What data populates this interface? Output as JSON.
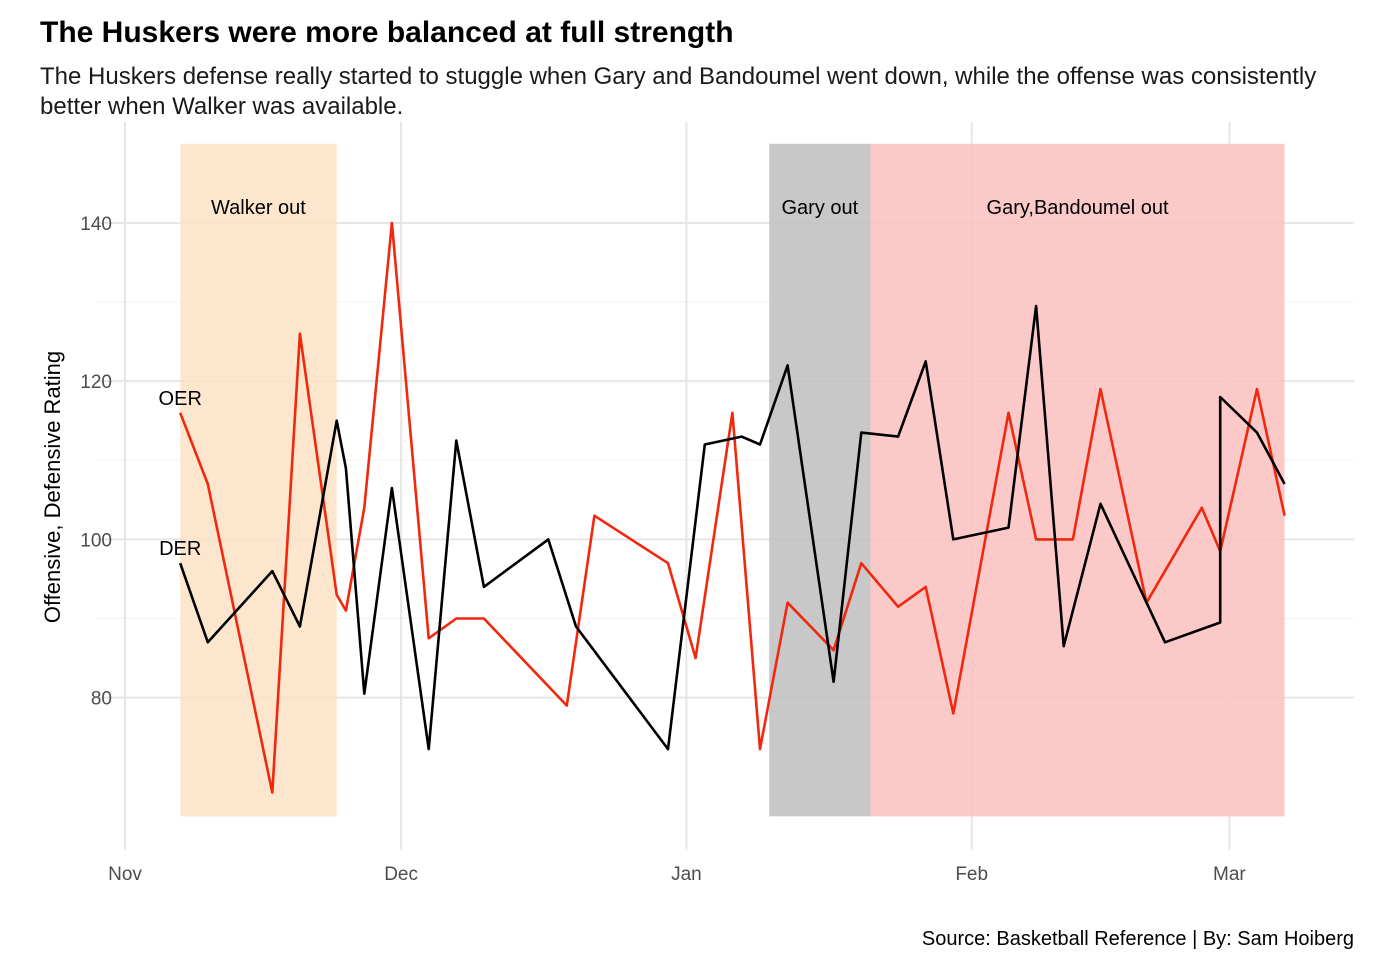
{
  "title": "The Huskers were more balanced at full strength",
  "subtitle": "The Huskers defense really started to stuggle when Gary and Bandoumel went down, while the offense was consistently better when Walker was available.",
  "caption": "Source: Basketball Reference | By: Sam Hoiberg",
  "chart_data": {
    "type": "line",
    "title": "The Huskers were more balanced at full strength",
    "xlabel": "",
    "ylabel": "Offensive, Defensive Rating",
    "x_axis": {
      "type": "date",
      "range": [
        "2021-11-01",
        "2022-03-09"
      ],
      "ticks": [
        {
          "date": "2021-11-01",
          "label": "Nov"
        },
        {
          "date": "2021-12-01",
          "label": "Dec"
        },
        {
          "date": "2022-01-01",
          "label": "Jan"
        },
        {
          "date": "2022-02-01",
          "label": "Feb"
        },
        {
          "date": "2022-03-01",
          "label": "Mar"
        }
      ]
    },
    "y_axis": {
      "range": [
        61,
        152
      ],
      "ticks": [
        80,
        100,
        120,
        140
      ]
    },
    "grid": true,
    "legend": "none",
    "shaded_periods": [
      {
        "label": "Walker out",
        "start": "2021-11-07",
        "end": "2021-11-24",
        "ymin": 65,
        "ymax": 150,
        "color": "#fbe3c5"
      },
      {
        "label": "Gary out",
        "start": "2022-01-10",
        "end": "2022-01-21",
        "ymin": 65,
        "ymax": 150,
        "color": "#bebebe"
      },
      {
        "label": "Gary,Bandoumel out",
        "start": "2022-01-21",
        "end": "2022-03-07",
        "ymin": 65,
        "ymax": 150,
        "color": "#fcc0c0"
      }
    ],
    "series": [
      {
        "name": "OER",
        "color": "#f0280e",
        "points": [
          [
            "2021-11-07",
            116
          ],
          [
            "2021-11-10",
            107
          ],
          [
            "2021-11-17",
            68
          ],
          [
            "2021-11-20",
            126
          ],
          [
            "2021-11-24",
            93
          ],
          [
            "2021-11-25",
            91
          ],
          [
            "2021-11-27",
            104
          ],
          [
            "2021-11-30",
            140
          ],
          [
            "2021-12-04",
            87.5
          ],
          [
            "2021-12-07",
            90
          ],
          [
            "2021-12-10",
            90
          ],
          [
            "2021-12-19",
            79
          ],
          [
            "2021-12-22",
            103
          ],
          [
            "2021-12-30",
            97
          ],
          [
            "2022-01-02",
            85
          ],
          [
            "2022-01-06",
            116
          ],
          [
            "2022-01-09",
            73.5
          ],
          [
            "2022-01-12",
            92
          ],
          [
            "2022-01-17",
            86
          ],
          [
            "2022-01-20",
            97
          ],
          [
            "2022-01-24",
            91.5
          ],
          [
            "2022-01-27",
            94
          ],
          [
            "2022-01-30",
            78
          ],
          [
            "2022-02-05",
            116
          ],
          [
            "2022-02-08",
            100
          ],
          [
            "2022-02-12",
            100
          ],
          [
            "2022-02-15",
            119
          ],
          [
            "2022-02-20",
            92
          ],
          [
            "2022-02-26",
            104
          ],
          [
            "2022-02-28",
            98.5
          ],
          [
            "2022-03-04",
            119
          ],
          [
            "2022-03-07",
            103
          ]
        ]
      },
      {
        "name": "DER",
        "color": "#000000",
        "points": [
          [
            "2021-11-07",
            97
          ],
          [
            "2021-11-10",
            87
          ],
          [
            "2021-11-17",
            96
          ],
          [
            "2021-11-20",
            89
          ],
          [
            "2021-11-24",
            115
          ],
          [
            "2021-11-25",
            109
          ],
          [
            "2021-11-27",
            80.5
          ],
          [
            "2021-11-30",
            106.5
          ],
          [
            "2021-12-04",
            73.5
          ],
          [
            "2021-12-07",
            112.5
          ],
          [
            "2021-12-10",
            94
          ],
          [
            "2021-12-17",
            100
          ],
          [
            "2021-12-20",
            89
          ],
          [
            "2021-12-30",
            73.5
          ],
          [
            "2022-01-03",
            112
          ],
          [
            "2022-01-07",
            113
          ],
          [
            "2022-01-09",
            112
          ],
          [
            "2022-01-12",
            122
          ],
          [
            "2022-01-17",
            82
          ],
          [
            "2022-01-20",
            113.5
          ],
          [
            "2022-01-24",
            113
          ],
          [
            "2022-01-27",
            122.5
          ],
          [
            "2022-01-30",
            100
          ],
          [
            "2022-02-05",
            101.5
          ],
          [
            "2022-02-08",
            129.5
          ],
          [
            "2022-02-11",
            86.5
          ],
          [
            "2022-02-15",
            104.5
          ],
          [
            "2022-02-22",
            87
          ],
          [
            "2022-02-28",
            89.5
          ],
          [
            "2022-02-28",
            118
          ],
          [
            "2022-03-04",
            113.5
          ],
          [
            "2022-03-07",
            107
          ]
        ]
      }
    ]
  }
}
